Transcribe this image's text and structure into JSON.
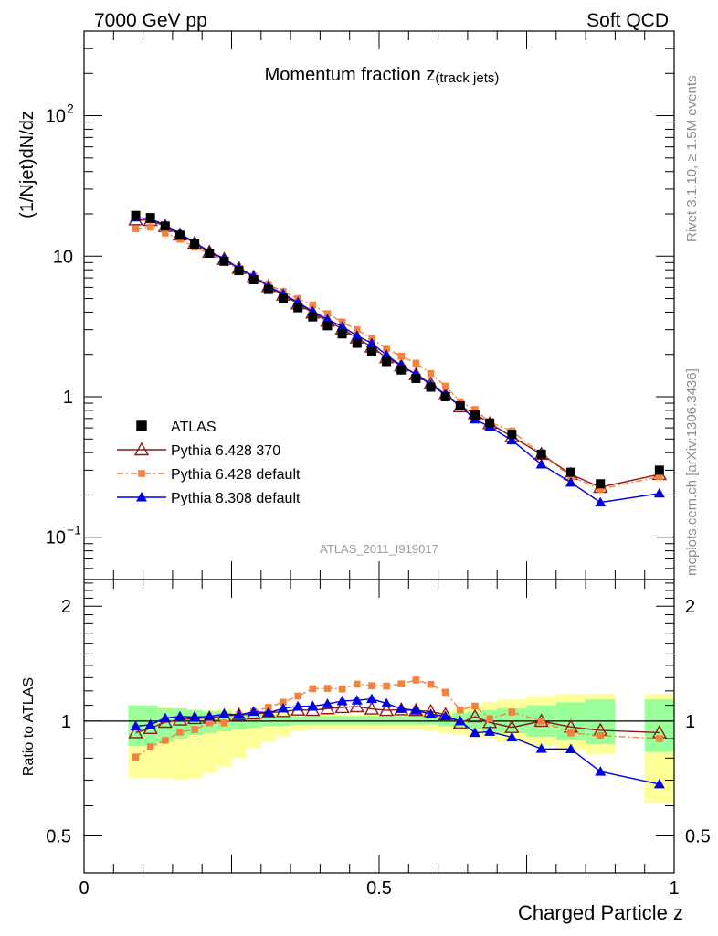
{
  "header": {
    "left": "7000 GeV pp",
    "right": "Soft QCD"
  },
  "side_labels": {
    "rivet": "Rivet 3.1.10, ≥ 1.5M events",
    "mcplots": "mcplots.cern.ch [arXiv:1306.3436]"
  },
  "chart_data": {
    "type": "scatter",
    "title_main": "Momentum fraction z",
    "title_sub": "(track jets)",
    "ylabel": "(1/Njet)dN/dz",
    "ratio_ylabel": "Ratio to ATLAS",
    "xlabel": "Charged Particle z",
    "analysis_tag": "ATLAS_2011_I919017",
    "xlim": [
      0,
      1
    ],
    "ylim": [
      0.05,
      400
    ],
    "ratio_ylim": [
      0.4,
      2.35
    ],
    "yscale": "log",
    "ratio_yscale": "log",
    "x_ticks": [
      {
        "v": 0,
        "label": "0"
      },
      {
        "v": 0.5,
        "label": "0.5"
      },
      {
        "v": 1,
        "label": "1"
      }
    ],
    "y_ticks": [
      {
        "v": 0.1,
        "base": "10",
        "exp": "−1"
      },
      {
        "v": 1,
        "base": "1",
        "exp": ""
      },
      {
        "v": 10,
        "base": "10",
        "exp": ""
      },
      {
        "v": 100,
        "base": "10",
        "exp": "2"
      }
    ],
    "ratio_ticks": [
      {
        "v": 0.5,
        "label": "0.5"
      },
      {
        "v": 1,
        "label": "1"
      },
      {
        "v": 2,
        "label": "2"
      }
    ],
    "x": [
      0.0875,
      0.1125,
      0.1375,
      0.1625,
      0.1875,
      0.2125,
      0.2375,
      0.2625,
      0.2875,
      0.3125,
      0.3375,
      0.3625,
      0.3875,
      0.4125,
      0.4375,
      0.4625,
      0.4875,
      0.5125,
      0.5375,
      0.5625,
      0.5875,
      0.6125,
      0.6375,
      0.6625,
      0.6875,
      0.725,
      0.775,
      0.825,
      0.875,
      0.975
    ],
    "band_edges": [
      0.075,
      0.1,
      0.125,
      0.15,
      0.175,
      0.2,
      0.225,
      0.25,
      0.275,
      0.3,
      0.325,
      0.35,
      0.375,
      0.4,
      0.425,
      0.45,
      0.475,
      0.5,
      0.525,
      0.55,
      0.575,
      0.6,
      0.625,
      0.65,
      0.675,
      0.7,
      0.75,
      0.8,
      0.85,
      0.9,
      0.95,
      1.0
    ],
    "band_bins": [
      [
        0.075,
        0.1,
        0.86,
        1.1,
        0.71,
        1.1
      ],
      [
        0.1,
        0.125,
        0.86,
        1.1,
        0.71,
        1.1
      ],
      [
        0.125,
        0.15,
        0.88,
        1.08,
        0.71,
        1.09
      ],
      [
        0.15,
        0.175,
        0.9,
        1.08,
        0.7,
        1.08
      ],
      [
        0.175,
        0.2,
        0.92,
        1.07,
        0.71,
        1.07
      ],
      [
        0.2,
        0.225,
        0.93,
        1.06,
        0.73,
        1.07
      ],
      [
        0.225,
        0.25,
        0.94,
        1.06,
        0.76,
        1.07
      ],
      [
        0.25,
        0.275,
        0.95,
        1.05,
        0.8,
        1.06
      ],
      [
        0.275,
        0.3,
        0.96,
        1.04,
        0.85,
        1.05
      ],
      [
        0.3,
        0.325,
        0.97,
        1.04,
        0.88,
        1.05
      ],
      [
        0.325,
        0.35,
        0.97,
        1.03,
        0.91,
        1.05
      ],
      [
        0.35,
        0.375,
        0.98,
        1.03,
        0.94,
        1.04
      ],
      [
        0.375,
        0.4,
        0.98,
        1.03,
        0.95,
        1.04
      ],
      [
        0.4,
        0.425,
        0.98,
        1.03,
        0.95,
        1.04
      ],
      [
        0.425,
        0.45,
        0.98,
        1.03,
        0.95,
        1.04
      ],
      [
        0.45,
        0.475,
        0.98,
        1.03,
        0.95,
        1.04
      ],
      [
        0.475,
        0.5,
        0.98,
        1.03,
        0.95,
        1.04
      ],
      [
        0.5,
        0.525,
        0.98,
        1.03,
        0.95,
        1.04
      ],
      [
        0.525,
        0.55,
        0.98,
        1.03,
        0.95,
        1.04
      ],
      [
        0.55,
        0.575,
        0.98,
        1.03,
        0.95,
        1.04
      ],
      [
        0.575,
        0.6,
        0.98,
        1.03,
        0.94,
        1.05
      ],
      [
        0.6,
        0.625,
        0.97,
        1.04,
        0.93,
        1.06
      ],
      [
        0.625,
        0.65,
        0.96,
        1.05,
        0.92,
        1.08
      ],
      [
        0.65,
        0.675,
        0.95,
        1.06,
        0.91,
        1.1
      ],
      [
        0.675,
        0.7,
        0.94,
        1.07,
        0.9,
        1.12
      ],
      [
        0.7,
        0.75,
        0.93,
        1.08,
        0.88,
        1.14
      ],
      [
        0.75,
        0.8,
        0.91,
        1.1,
        0.86,
        1.16
      ],
      [
        0.8,
        0.85,
        0.89,
        1.12,
        0.84,
        1.18
      ],
      [
        0.85,
        0.9,
        0.87,
        1.14,
        0.82,
        1.18
      ],
      [
        0.95,
        1.0,
        0.83,
        1.14,
        0.61,
        1.18
      ]
    ],
    "series": [
      {
        "name": "ATLAS",
        "color": "#000000",
        "marker": "square",
        "values": [
          19.5,
          18.8,
          16.4,
          14.1,
          12.2,
          10.5,
          9.2,
          7.9,
          6.8,
          5.8,
          5.0,
          4.3,
          3.7,
          3.2,
          2.8,
          2.4,
          2.1,
          1.78,
          1.55,
          1.35,
          1.17,
          1.0,
          0.86,
          0.74,
          0.65,
          0.54,
          0.39,
          0.29,
          0.24,
          0.3
        ]
      },
      {
        "name": "Pythia 6.428 370",
        "color": "#8b1a1a",
        "marker": "triangle-open",
        "line": "solid",
        "values": [
          18.2,
          18.0,
          16.3,
          14.2,
          12.4,
          10.7,
          9.5,
          8.2,
          7.1,
          6.1,
          5.3,
          4.6,
          3.95,
          3.45,
          3.04,
          2.62,
          2.26,
          1.9,
          1.66,
          1.44,
          1.24,
          1.04,
          0.85,
          0.76,
          0.645,
          0.52,
          0.39,
          0.28,
          0.227,
          0.28
        ]
      },
      {
        "name": "Pythia 6.428 default",
        "color": "#f5823c",
        "marker": "square-small",
        "line": "dashdot",
        "values": [
          15.7,
          16.1,
          14.6,
          13.2,
          11.6,
          10.4,
          9.1,
          8.2,
          7.2,
          6.3,
          5.6,
          5.0,
          4.5,
          3.9,
          3.4,
          3.0,
          2.6,
          2.2,
          1.94,
          1.73,
          1.46,
          1.19,
          0.92,
          0.81,
          0.66,
          0.57,
          0.39,
          0.27,
          0.22,
          0.27
        ]
      },
      {
        "name": "Pythia 8.308 default",
        "color": "#0000e6",
        "marker": "triangle",
        "line": "solid",
        "values": [
          18.9,
          18.4,
          16.7,
          14.5,
          12.5,
          10.8,
          9.6,
          8.2,
          7.2,
          6.1,
          5.4,
          4.7,
          4.05,
          3.55,
          3.16,
          2.72,
          2.4,
          1.98,
          1.67,
          1.44,
          1.22,
          1.03,
          0.86,
          0.69,
          0.61,
          0.49,
          0.33,
          0.245,
          0.177,
          0.205
        ]
      }
    ]
  }
}
